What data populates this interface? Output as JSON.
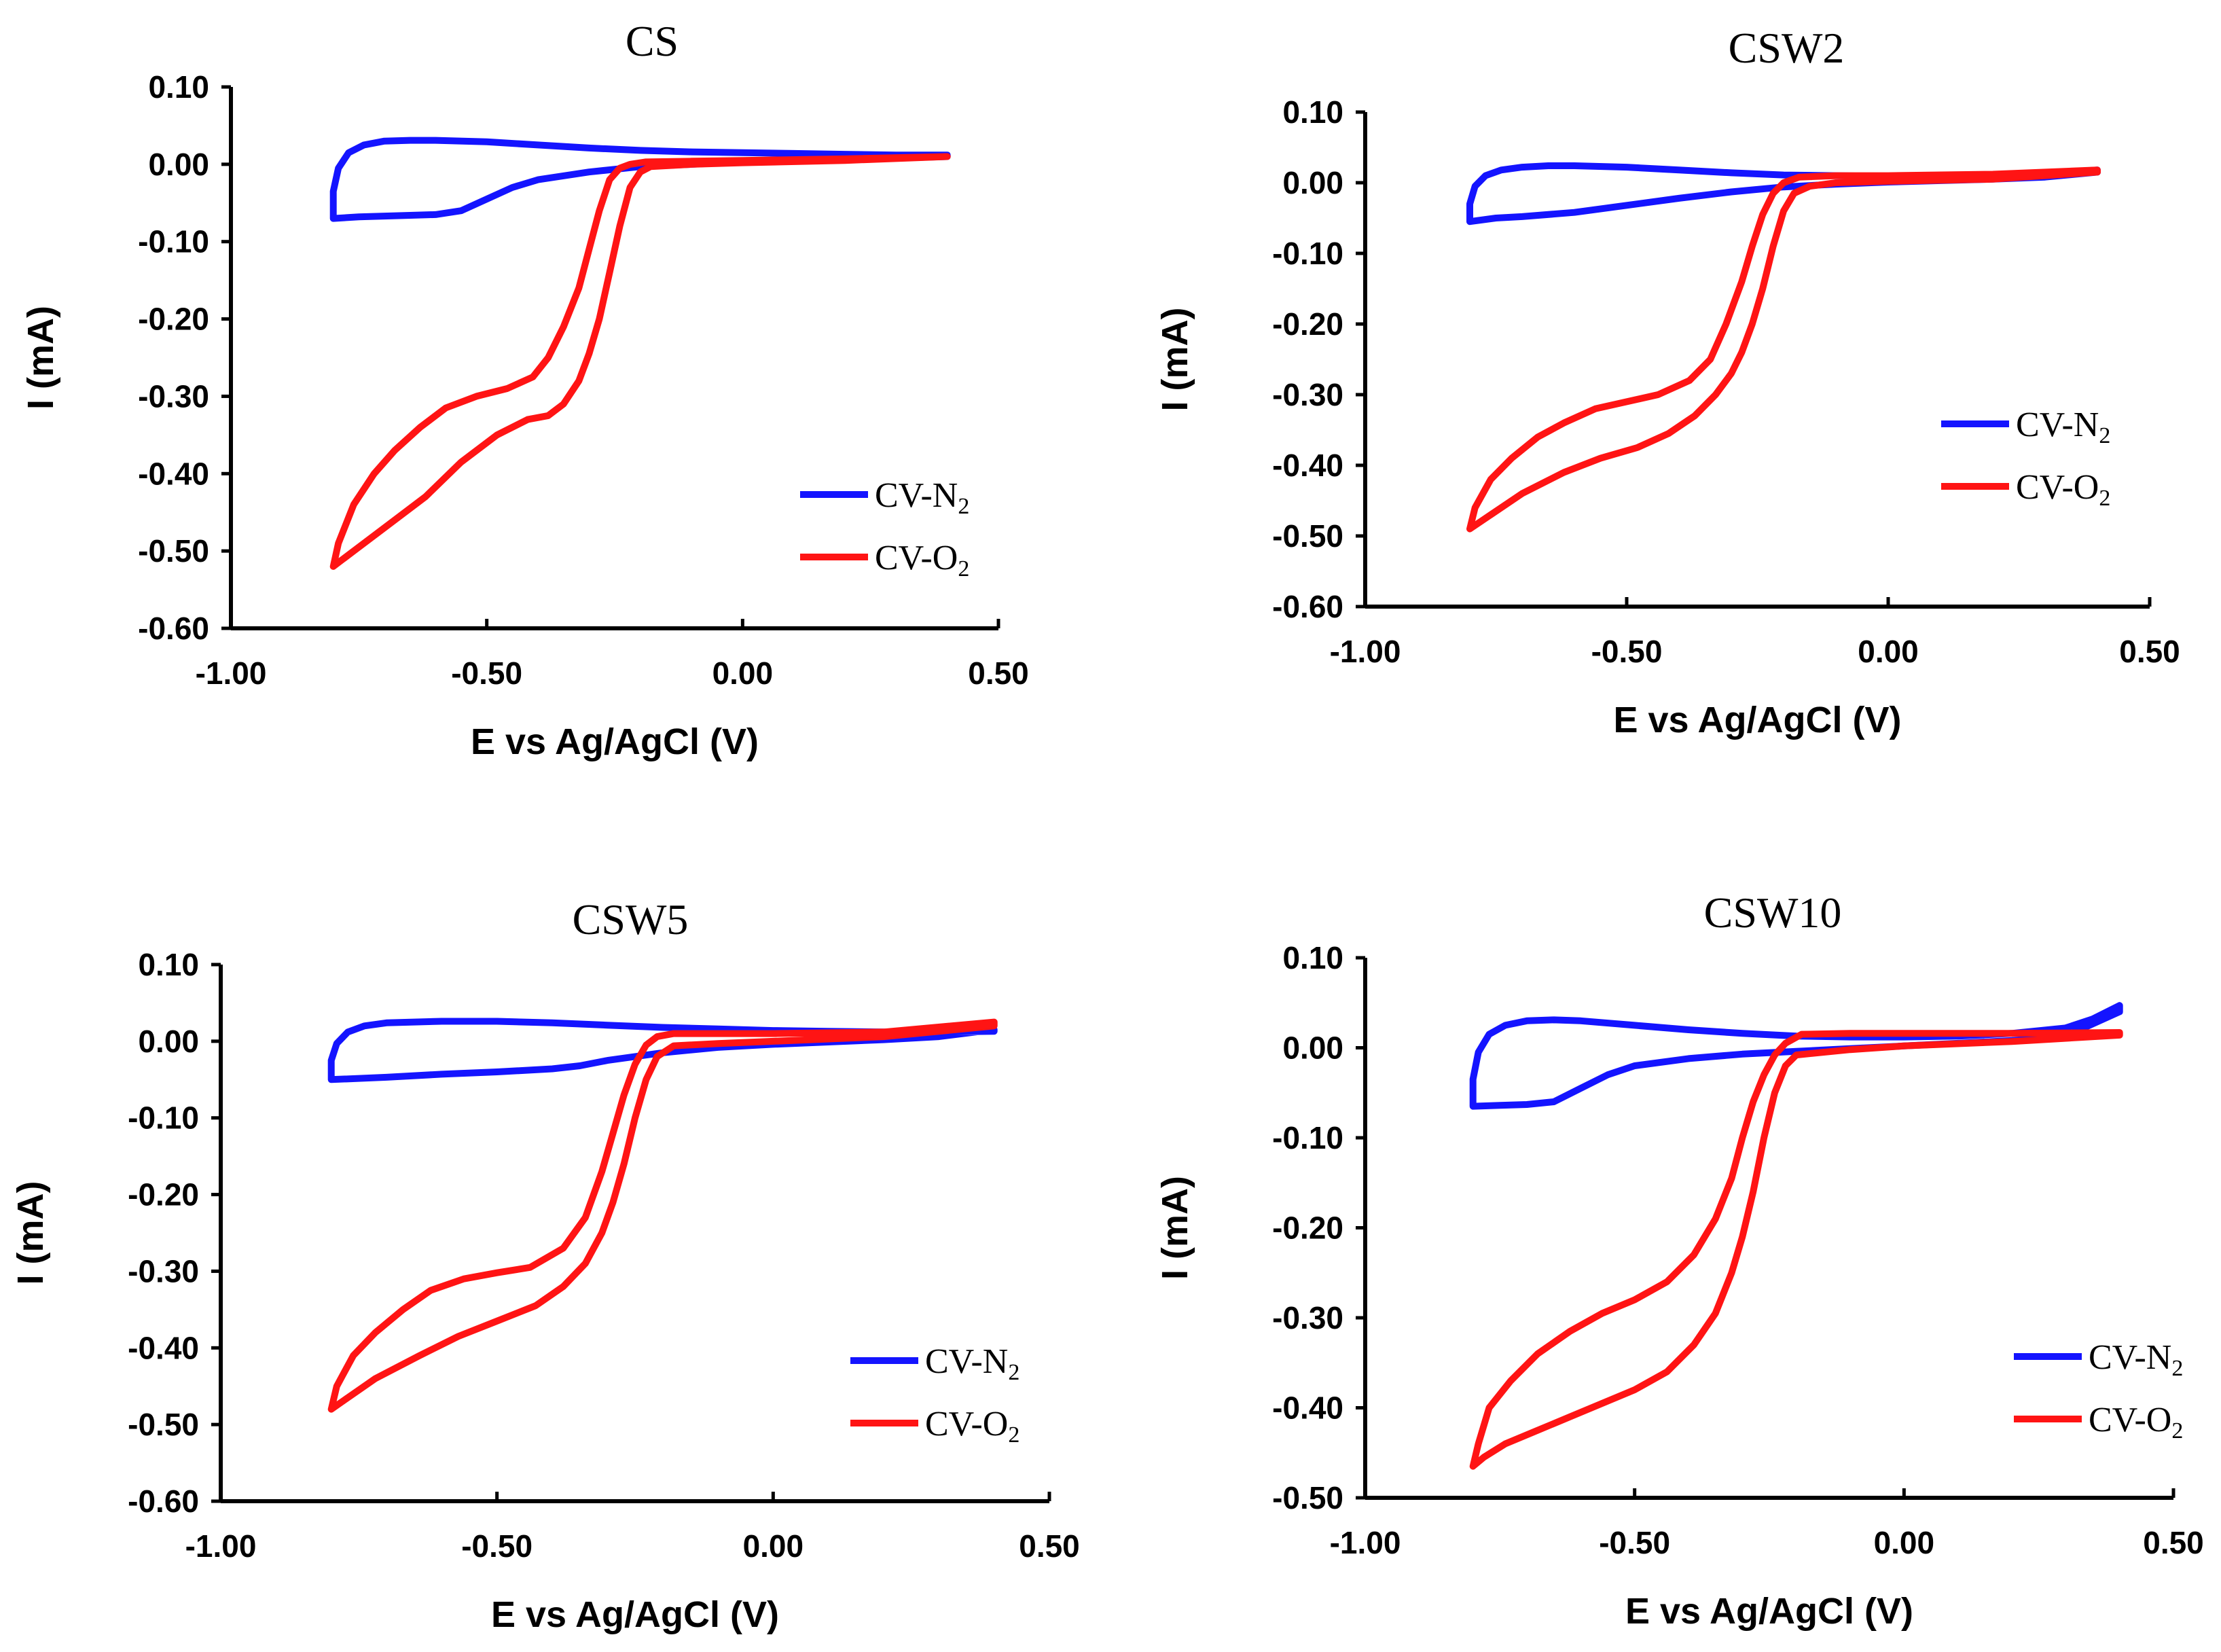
{
  "chart_data": [
    {
      "type": "line",
      "title": "CS",
      "xlabel": "E vs Ag/AgCl (V)",
      "ylabel": "I (mA)",
      "xlim": [
        -1.0,
        0.5
      ],
      "ylim": [
        -0.6,
        0.1
      ],
      "xticks": [
        -1.0,
        -0.5,
        0.0,
        0.5
      ],
      "xtick_labels": [
        "-1.00",
        "-0.50",
        "0.00",
        "0.50"
      ],
      "yticks": [
        0.1,
        0.0,
        -0.1,
        -0.2,
        -0.3,
        -0.4,
        -0.5,
        -0.6
      ],
      "ytick_labels": [
        "0.10",
        "0.00",
        "-0.10",
        "-0.20",
        "-0.30",
        "-0.40",
        "-0.50",
        "-0.60"
      ],
      "legend_position": "lower-right",
      "series": [
        {
          "legend_main": "CV-N",
          "legend_sub": "2",
          "color": "#1414ff",
          "x": [
            -0.8,
            -0.8,
            -0.79,
            -0.77,
            -0.74,
            -0.7,
            -0.65,
            -0.6,
            -0.5,
            -0.4,
            -0.3,
            -0.2,
            -0.1,
            0.0,
            0.1,
            0.2,
            0.3,
            0.4,
            0.4,
            0.3,
            0.2,
            0.1,
            0.0,
            -0.1,
            -0.2,
            -0.3,
            -0.4,
            -0.45,
            -0.5,
            -0.55,
            -0.6,
            -0.65,
            -0.7,
            -0.75,
            -0.8
          ],
          "y": [
            -0.07,
            -0.035,
            -0.005,
            0.015,
            0.025,
            0.03,
            0.031,
            0.031,
            0.029,
            0.025,
            0.021,
            0.018,
            0.016,
            0.015,
            0.014,
            0.013,
            0.012,
            0.012,
            0.01,
            0.008,
            0.007,
            0.005,
            0.003,
            0.0,
            -0.003,
            -0.01,
            -0.02,
            -0.03,
            -0.045,
            -0.06,
            -0.065,
            -0.066,
            -0.067,
            -0.068,
            -0.07
          ]
        },
        {
          "legend_main": "CV-O",
          "legend_sub": "2",
          "color": "#ff1414",
          "x": [
            -0.8,
            -0.79,
            -0.76,
            -0.72,
            -0.68,
            -0.63,
            -0.58,
            -0.52,
            -0.46,
            -0.41,
            -0.38,
            -0.35,
            -0.32,
            -0.3,
            -0.28,
            -0.26,
            -0.24,
            -0.22,
            -0.19,
            -0.1,
            0.0,
            0.2,
            0.4,
            0.4,
            0.2,
            0.0,
            -0.1,
            -0.18,
            -0.2,
            -0.22,
            -0.24,
            -0.26,
            -0.28,
            -0.3,
            -0.32,
            -0.35,
            -0.38,
            -0.42,
            -0.48,
            -0.55,
            -0.62,
            -0.7,
            -0.76,
            -0.8
          ],
          "y": [
            -0.52,
            -0.49,
            -0.44,
            -0.4,
            -0.37,
            -0.34,
            -0.315,
            -0.3,
            -0.29,
            -0.275,
            -0.25,
            -0.21,
            -0.16,
            -0.11,
            -0.06,
            -0.02,
            -0.005,
            0.0,
            0.003,
            0.004,
            0.005,
            0.007,
            0.01,
            0.01,
            0.005,
            0.002,
            0.0,
            -0.003,
            -0.01,
            -0.03,
            -0.08,
            -0.14,
            -0.2,
            -0.245,
            -0.28,
            -0.31,
            -0.325,
            -0.33,
            -0.35,
            -0.385,
            -0.43,
            -0.47,
            -0.5,
            -0.52
          ]
        }
      ]
    },
    {
      "type": "line",
      "title": "CSW2",
      "xlabel": "E vs Ag/AgCl (V)",
      "ylabel": "I (mA)",
      "xlim": [
        -1.0,
        0.5
      ],
      "ylim": [
        -0.6,
        0.1
      ],
      "xticks": [
        -1.0,
        -0.5,
        0.0,
        0.5
      ],
      "xtick_labels": [
        "-1.00",
        "-0.50",
        "0.00",
        "0.50"
      ],
      "yticks": [
        0.1,
        0.0,
        -0.1,
        -0.2,
        -0.3,
        -0.4,
        -0.5,
        -0.6
      ],
      "ytick_labels": [
        "0.10",
        "0.00",
        "-0.10",
        "-0.20",
        "-0.30",
        "-0.40",
        "-0.50",
        "-0.60"
      ],
      "legend_position": "right",
      "series": [
        {
          "legend_main": "CV-N",
          "legend_sub": "2",
          "color": "#1414ff",
          "x": [
            -0.8,
            -0.8,
            -0.79,
            -0.77,
            -0.74,
            -0.7,
            -0.65,
            -0.6,
            -0.5,
            -0.4,
            -0.3,
            -0.2,
            -0.1,
            0.0,
            0.1,
            0.2,
            0.3,
            0.4,
            0.4,
            0.3,
            0.2,
            0.1,
            0.0,
            -0.1,
            -0.2,
            -0.3,
            -0.4,
            -0.5,
            -0.6,
            -0.7,
            -0.75,
            -0.8
          ],
          "y": [
            -0.055,
            -0.03,
            -0.005,
            0.01,
            0.018,
            0.022,
            0.024,
            0.024,
            0.022,
            0.018,
            0.014,
            0.011,
            0.01,
            0.009,
            0.009,
            0.01,
            0.013,
            0.018,
            0.015,
            0.008,
            0.005,
            0.003,
            0.001,
            -0.002,
            -0.006,
            -0.013,
            -0.022,
            -0.032,
            -0.042,
            -0.048,
            -0.05,
            -0.055
          ]
        },
        {
          "legend_main": "CV-O",
          "legend_sub": "2",
          "color": "#ff1414",
          "x": [
            -0.8,
            -0.79,
            -0.76,
            -0.72,
            -0.67,
            -0.62,
            -0.56,
            -0.5,
            -0.44,
            -0.38,
            -0.34,
            -0.31,
            -0.28,
            -0.26,
            -0.24,
            -0.22,
            -0.2,
            -0.17,
            -0.1,
            0.0,
            0.2,
            0.4,
            0.4,
            0.2,
            0.0,
            -0.1,
            -0.15,
            -0.18,
            -0.2,
            -0.22,
            -0.24,
            -0.26,
            -0.28,
            -0.3,
            -0.33,
            -0.37,
            -0.42,
            -0.48,
            -0.55,
            -0.62,
            -0.7,
            -0.76,
            -0.8
          ],
          "y": [
            -0.49,
            -0.46,
            -0.42,
            -0.39,
            -0.36,
            -0.34,
            -0.32,
            -0.31,
            -0.3,
            -0.28,
            -0.25,
            -0.2,
            -0.14,
            -0.09,
            -0.045,
            -0.015,
            0.0,
            0.008,
            0.01,
            0.01,
            0.012,
            0.018,
            0.015,
            0.005,
            0.002,
            0.0,
            -0.005,
            -0.015,
            -0.04,
            -0.09,
            -0.15,
            -0.2,
            -0.24,
            -0.27,
            -0.3,
            -0.33,
            -0.355,
            -0.375,
            -0.39,
            -0.41,
            -0.44,
            -0.47,
            -0.49
          ]
        }
      ]
    },
    {
      "type": "line",
      "title": "CSW5",
      "xlabel": "E vs Ag/AgCl (V)",
      "ylabel": "I (mA)",
      "xlim": [
        -1.0,
        0.5
      ],
      "ylim": [
        -0.6,
        0.1
      ],
      "xticks": [
        -1.0,
        -0.5,
        0.0,
        0.5
      ],
      "xtick_labels": [
        "-1.00",
        "-0.50",
        "0.00",
        "0.50"
      ],
      "yticks": [
        0.1,
        0.0,
        -0.1,
        -0.2,
        -0.3,
        -0.4,
        -0.5,
        -0.6
      ],
      "ytick_labels": [
        "0.10",
        "0.00",
        "-0.10",
        "-0.20",
        "-0.30",
        "-0.40",
        "-0.50",
        "-0.60"
      ],
      "legend_position": "lower-right",
      "series": [
        {
          "legend_main": "CV-N",
          "legend_sub": "2",
          "color": "#1414ff",
          "x": [
            -0.8,
            -0.8,
            -0.79,
            -0.77,
            -0.74,
            -0.7,
            -0.65,
            -0.6,
            -0.5,
            -0.4,
            -0.3,
            -0.2,
            -0.1,
            0.0,
            0.1,
            0.2,
            0.3,
            0.4,
            0.4,
            0.3,
            0.2,
            0.1,
            0.0,
            -0.1,
            -0.2,
            -0.3,
            -0.35,
            -0.4,
            -0.5,
            -0.6,
            -0.7,
            -0.8
          ],
          "y": [
            -0.05,
            -0.025,
            -0.003,
            0.012,
            0.02,
            0.024,
            0.025,
            0.026,
            0.026,
            0.024,
            0.021,
            0.018,
            0.016,
            0.014,
            0.013,
            0.012,
            0.012,
            0.013,
            0.015,
            0.006,
            0.002,
            -0.001,
            -0.004,
            -0.008,
            -0.015,
            -0.025,
            -0.032,
            -0.036,
            -0.04,
            -0.043,
            -0.047,
            -0.05
          ]
        },
        {
          "legend_main": "CV-O",
          "legend_sub": "2",
          "color": "#ff1414",
          "x": [
            -0.8,
            -0.79,
            -0.76,
            -0.72,
            -0.67,
            -0.62,
            -0.56,
            -0.5,
            -0.44,
            -0.38,
            -0.34,
            -0.31,
            -0.29,
            -0.27,
            -0.25,
            -0.23,
            -0.21,
            -0.18,
            -0.1,
            0.0,
            0.2,
            0.4,
            0.4,
            0.2,
            0.0,
            -0.1,
            -0.18,
            -0.21,
            -0.23,
            -0.25,
            -0.27,
            -0.29,
            -0.31,
            -0.34,
            -0.38,
            -0.43,
            -0.5,
            -0.57,
            -0.64,
            -0.72,
            -0.78,
            -0.8
          ],
          "y": [
            -0.48,
            -0.45,
            -0.41,
            -0.38,
            -0.35,
            -0.325,
            -0.31,
            -0.302,
            -0.295,
            -0.27,
            -0.23,
            -0.17,
            -0.12,
            -0.07,
            -0.03,
            -0.005,
            0.006,
            0.01,
            0.01,
            0.01,
            0.012,
            0.025,
            0.02,
            0.006,
            0.0,
            -0.003,
            -0.006,
            -0.02,
            -0.05,
            -0.1,
            -0.16,
            -0.21,
            -0.25,
            -0.29,
            -0.32,
            -0.345,
            -0.365,
            -0.385,
            -0.41,
            -0.44,
            -0.47,
            -0.48
          ]
        }
      ]
    },
    {
      "type": "line",
      "title": "CSW10",
      "xlabel": "E vs Ag/AgCl (V)",
      "ylabel": "I (mA)",
      "xlim": [
        -1.0,
        0.5
      ],
      "ylim": [
        -0.5,
        0.1
      ],
      "xticks": [
        -1.0,
        -0.5,
        0.0,
        0.5
      ],
      "xtick_labels": [
        "-1.00",
        "-0.50",
        "0.00",
        "0.50"
      ],
      "yticks": [
        0.1,
        0.0,
        -0.1,
        -0.2,
        -0.3,
        -0.4,
        -0.5
      ],
      "ytick_labels": [
        "0.10",
        "0.00",
        "-0.10",
        "-0.20",
        "-0.30",
        "-0.40",
        "-0.50"
      ],
      "legend_position": "lower-right",
      "series": [
        {
          "legend_main": "CV-N",
          "legend_sub": "2",
          "color": "#1414ff",
          "x": [
            -0.8,
            -0.8,
            -0.79,
            -0.77,
            -0.74,
            -0.7,
            -0.65,
            -0.6,
            -0.5,
            -0.4,
            -0.3,
            -0.2,
            -0.1,
            0.0,
            0.1,
            0.2,
            0.3,
            0.35,
            0.4,
            0.4,
            0.3,
            0.2,
            0.1,
            0.0,
            -0.1,
            -0.2,
            -0.3,
            -0.4,
            -0.5,
            -0.55,
            -0.6,
            -0.65,
            -0.7,
            -0.75,
            -0.8
          ],
          "y": [
            -0.065,
            -0.035,
            -0.005,
            0.015,
            0.025,
            0.03,
            0.031,
            0.03,
            0.025,
            0.02,
            0.016,
            0.013,
            0.012,
            0.012,
            0.013,
            0.016,
            0.022,
            0.032,
            0.047,
            0.04,
            0.013,
            0.008,
            0.005,
            0.002,
            -0.001,
            -0.004,
            -0.007,
            -0.012,
            -0.02,
            -0.03,
            -0.045,
            -0.06,
            -0.063,
            -0.064,
            -0.065
          ]
        },
        {
          "legend_main": "CV-O",
          "legend_sub": "2",
          "color": "#ff1414",
          "x": [
            -0.8,
            -0.79,
            -0.77,
            -0.73,
            -0.68,
            -0.62,
            -0.56,
            -0.5,
            -0.44,
            -0.39,
            -0.35,
            -0.32,
            -0.3,
            -0.28,
            -0.26,
            -0.24,
            -0.22,
            -0.19,
            -0.1,
            0.0,
            0.2,
            0.4,
            0.4,
            0.2,
            0.0,
            -0.1,
            -0.2,
            -0.22,
            -0.24,
            -0.26,
            -0.28,
            -0.3,
            -0.32,
            -0.35,
            -0.39,
            -0.44,
            -0.5,
            -0.56,
            -0.62,
            -0.68,
            -0.74,
            -0.78,
            -0.8
          ],
          "y": [
            -0.465,
            -0.44,
            -0.4,
            -0.37,
            -0.34,
            -0.315,
            -0.295,
            -0.28,
            -0.26,
            -0.23,
            -0.19,
            -0.145,
            -0.1,
            -0.06,
            -0.03,
            -0.008,
            0.005,
            0.015,
            0.016,
            0.016,
            0.016,
            0.017,
            0.014,
            0.007,
            0.002,
            -0.002,
            -0.008,
            -0.02,
            -0.05,
            -0.1,
            -0.16,
            -0.21,
            -0.25,
            -0.295,
            -0.33,
            -0.36,
            -0.38,
            -0.395,
            -0.41,
            -0.425,
            -0.44,
            -0.455,
            -0.465
          ]
        }
      ]
    }
  ]
}
